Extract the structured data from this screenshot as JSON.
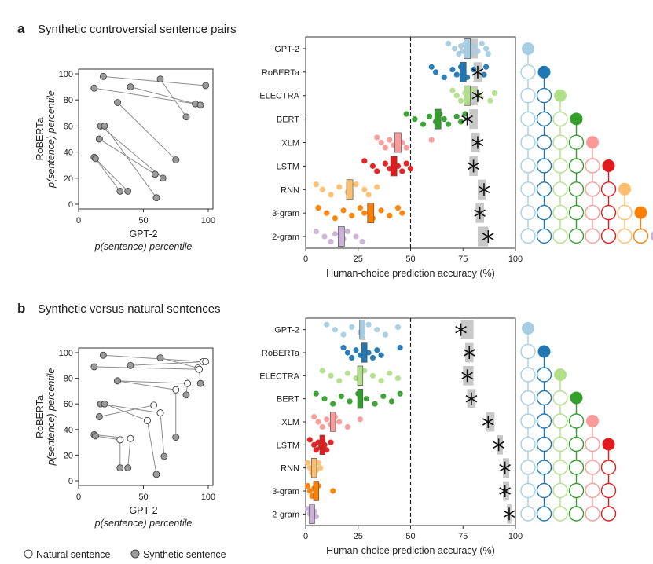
{
  "panels": [
    {
      "letter": "a",
      "title": "Synthetic controversial sentence pairs",
      "scatter": {
        "xlabel_line1": "GPT-2",
        "xlabel_line2": "p(sentence) percentile",
        "ylabel_line1": "RoBERTa",
        "ylabel_line2": "p(sentence) percentile",
        "xticks": [
          "0",
          "50",
          "100"
        ],
        "yticks": [
          "0",
          "20",
          "40",
          "60",
          "80",
          "100"
        ],
        "pairs": [
          {
            "a": [
              19,
              98
            ],
            "b": [
              98,
              91
            ]
          },
          {
            "a": [
              12,
              89
            ],
            "b": [
              90,
              77
            ]
          },
          {
            "a": [
              40,
              90
            ],
            "b": [
              94,
              76
            ]
          },
          {
            "a": [
              63,
              96
            ],
            "b": [
              83,
              67
            ]
          },
          {
            "a": [
              30,
              78
            ],
            "b": [
              75,
              34
            ]
          },
          {
            "a": [
              17,
              60
            ],
            "b": [
              65,
              20
            ]
          },
          {
            "a": [
              16,
              50
            ],
            "b": [
              59,
              23
            ]
          },
          {
            "a": [
              12,
              36
            ],
            "b": [
              38,
              10
            ]
          },
          {
            "a": [
              20,
              60
            ],
            "b": [
              60,
              5
            ]
          },
          {
            "a": [
              13,
              35
            ],
            "b": [
              32,
              10
            ]
          }
        ]
      },
      "accuracy": {
        "xlabel": "Human-choice prediction accuracy (%)",
        "xticks": [
          "0",
          "25",
          "50",
          "75",
          "100"
        ],
        "rows": [
          {
            "model": "GPT-2",
            "color": "#a6cee3",
            "box_center": 77,
            "box_width": 3,
            "ceiling": [
              76,
              82
            ],
            "star": null,
            "dots": [
              68,
              71,
              73,
              74,
              75,
              76,
              78,
              79,
              80,
              82,
              84,
              86,
              87
            ]
          },
          {
            "model": "RoBERTa",
            "color": "#1f78b4",
            "box_center": 75,
            "box_width": 3,
            "ceiling": [
              80,
              84
            ],
            "star": 82,
            "dots": [
              60,
              62,
              66,
              70,
              72,
              74,
              75,
              77,
              80,
              85,
              86
            ]
          },
          {
            "model": "ELECTRA",
            "color": "#b2df8a",
            "box_center": 77,
            "box_width": 3,
            "ceiling": [
              79,
              82
            ],
            "star": 82,
            "dots": [
              70,
              72,
              74,
              76,
              78,
              80,
              83,
              88,
              90
            ]
          },
          {
            "model": "BERT",
            "color": "#33a02c",
            "box_center": 63,
            "box_width": 3,
            "ceiling": [
              78,
              82
            ],
            "star": 77,
            "dots": [
              48,
              52,
              56,
              59,
              62,
              64,
              66,
              68,
              72,
              74,
              76
            ]
          },
          {
            "model": "XLM",
            "color": "#fb9a99",
            "box_center": 44,
            "box_width": 3,
            "ceiling": [
              79,
              83
            ],
            "star": 82,
            "dots": [
              34,
              36,
              38,
              40,
              42,
              44,
              46,
              48,
              60
            ]
          },
          {
            "model": "LSTM",
            "color": "#e31a1c",
            "box_center": 42,
            "box_width": 3,
            "ceiling": [
              78,
              82
            ],
            "star": 80,
            "dots": [
              28,
              32,
              34,
              38,
              40,
              42,
              44,
              46,
              48,
              50
            ]
          },
          {
            "model": "RNN",
            "color": "#fdbf6f",
            "box_center": 21,
            "box_width": 3,
            "ceiling": [
              82,
              86
            ],
            "star": 85,
            "dots": [
              5,
              8,
              12,
              16,
              20,
              24,
              28,
              30,
              34
            ]
          },
          {
            "model": "3-gram",
            "color": "#ff7f00",
            "box_center": 31,
            "box_width": 3,
            "ceiling": [
              81,
              85
            ],
            "star": 83,
            "dots": [
              6,
              10,
              14,
              18,
              22,
              26,
              28,
              32,
              36,
              40,
              44,
              46
            ]
          },
          {
            "model": "2-gram",
            "color": "#cab2d6",
            "box_center": 17,
            "box_width": 3,
            "ceiling": [
              82,
              87
            ],
            "star": 87,
            "dots": [
              5,
              9,
              12,
              14,
              18,
              20,
              24,
              27
            ]
          }
        ]
      }
    },
    {
      "letter": "b",
      "title": "Synthetic versus natural sentences",
      "scatter": {
        "xlabel_line1": "GPT-2",
        "xlabel_line2": "p(sentence) percentile",
        "ylabel_line1": "RoBERTa",
        "ylabel_line2": "p(sentence) percentile",
        "xticks": [
          "0",
          "50",
          "100"
        ],
        "yticks": [
          "0",
          "20",
          "40",
          "60",
          "80",
          "100"
        ],
        "pairs": [
          {
            "a": [
              19,
              98
            ],
            "b": [
              96,
              93
            ]
          },
          {
            "a": [
              12,
              89
            ],
            "b": [
              93,
              87
            ]
          },
          {
            "a": [
              40,
              90
            ],
            "b": [
              98,
              93
            ]
          },
          {
            "a": [
              63,
              96
            ],
            "b": [
              92,
              88
            ]
          },
          {
            "a": [
              30,
              78
            ],
            "b": [
              84,
              76
            ]
          },
          {
            "a": [
              30,
              78
            ],
            "b": [
              75,
              71
            ]
          },
          {
            "a": [
              17,
              60
            ],
            "b": [
              63,
              53
            ]
          },
          {
            "a": [
              16,
              50
            ],
            "b": [
              58,
              59
            ]
          },
          {
            "a": [
              20,
              60
            ],
            "b": [
              53,
              47
            ]
          },
          {
            "a": [
              12,
              36
            ],
            "b": [
              40,
              33
            ]
          },
          {
            "a": [
              13,
              35
            ],
            "b": [
              32,
              32
            ]
          },
          {
            "a": [
              60,
              5
            ],
            "b": [
              53,
              47
            ]
          },
          {
            "a": [
              66,
              19
            ],
            "b": [
              63,
              53
            ]
          },
          {
            "a": [
              38,
              10
            ],
            "b": [
              40,
              33
            ]
          },
          {
            "a": [
              32,
              10
            ],
            "b": [
              32,
              32
            ]
          },
          {
            "a": [
              75,
              34
            ],
            "b": [
              75,
              71
            ]
          },
          {
            "a": [
              83,
              67
            ],
            "b": [
              84,
              76
            ]
          },
          {
            "a": [
              94,
              76
            ],
            "b": [
              93,
              87
            ]
          }
        ]
      },
      "accuracy": {
        "xlabel": "Human-choice prediction accuracy (%)",
        "xticks": [
          "0",
          "25",
          "50",
          "75",
          "100"
        ],
        "rows": [
          {
            "model": "GPT-2",
            "color": "#a6cee3",
            "box_center": 27,
            "box_width": 2.5,
            "ceiling": [
              74,
              80
            ],
            "star": 74,
            "dots": [
              10,
              14,
              18,
              22,
              26,
              30,
              34,
              38,
              44
            ]
          },
          {
            "model": "RoBERTa",
            "color": "#1f78b4",
            "box_center": 28,
            "box_width": 2.5,
            "ceiling": [
              76,
              80
            ],
            "star": 78,
            "dots": [
              18,
              20,
              22,
              24,
              26,
              28,
              30,
              32,
              34,
              36,
              45
            ]
          },
          {
            "model": "ELECTRA",
            "color": "#b2df8a",
            "box_center": 26,
            "box_width": 2.5,
            "ceiling": [
              75,
              80
            ],
            "star": 77,
            "dots": [
              8,
              12,
              16,
              20,
              24,
              28,
              32,
              36,
              40,
              44
            ]
          },
          {
            "model": "BERT",
            "color": "#33a02c",
            "box_center": 26,
            "box_width": 2.5,
            "ceiling": [
              77,
              81
            ],
            "star": 79,
            "dots": [
              5,
              9,
              13,
              17,
              21,
              25,
              29,
              33,
              37,
              41,
              45
            ]
          },
          {
            "model": "XLM",
            "color": "#fb9a99",
            "box_center": 13,
            "box_width": 2.5,
            "ceiling": [
              86,
              90
            ],
            "star": 87,
            "dots": [
              4,
              6,
              8,
              10,
              12,
              14,
              16,
              20,
              26
            ]
          },
          {
            "model": "LSTM",
            "color": "#e31a1c",
            "box_center": 8,
            "box_width": 2.5,
            "ceiling": [
              91,
              94
            ],
            "star": 92,
            "dots": [
              2,
              4,
              5,
              6,
              7,
              8,
              9,
              10,
              12
            ]
          },
          {
            "model": "RNN",
            "color": "#fdbf6f",
            "box_center": 4,
            "box_width": 2.5,
            "ceiling": [
              94,
              97
            ],
            "star": 95,
            "dots": [
              1,
              2,
              3,
              4,
              5,
              6,
              7
            ]
          },
          {
            "model": "3-gram",
            "color": "#ff7f00",
            "box_center": 5,
            "box_width": 2.5,
            "ceiling": [
              94,
              97
            ],
            "star": 95,
            "dots": [
              1,
              2,
              3,
              4,
              5,
              6,
              13
            ]
          },
          {
            "model": "2-gram",
            "color": "#cab2d6",
            "box_center": 3,
            "box_width": 2.5,
            "ceiling": [
              96,
              98
            ],
            "star": 97,
            "dots": [
              1,
              2,
              3,
              4,
              5
            ]
          }
        ]
      }
    }
  ],
  "legend": {
    "natural_label": "Natural sentence",
    "synthetic_label": "Synthetic sentence"
  },
  "colors": {
    "synthetic_fill": "#9a9a9a",
    "natural_fill": "#ffffff",
    "pair_line": "#8c8c8c",
    "ceiling_band": "#c8c8c8",
    "chance_line": "#222222"
  }
}
